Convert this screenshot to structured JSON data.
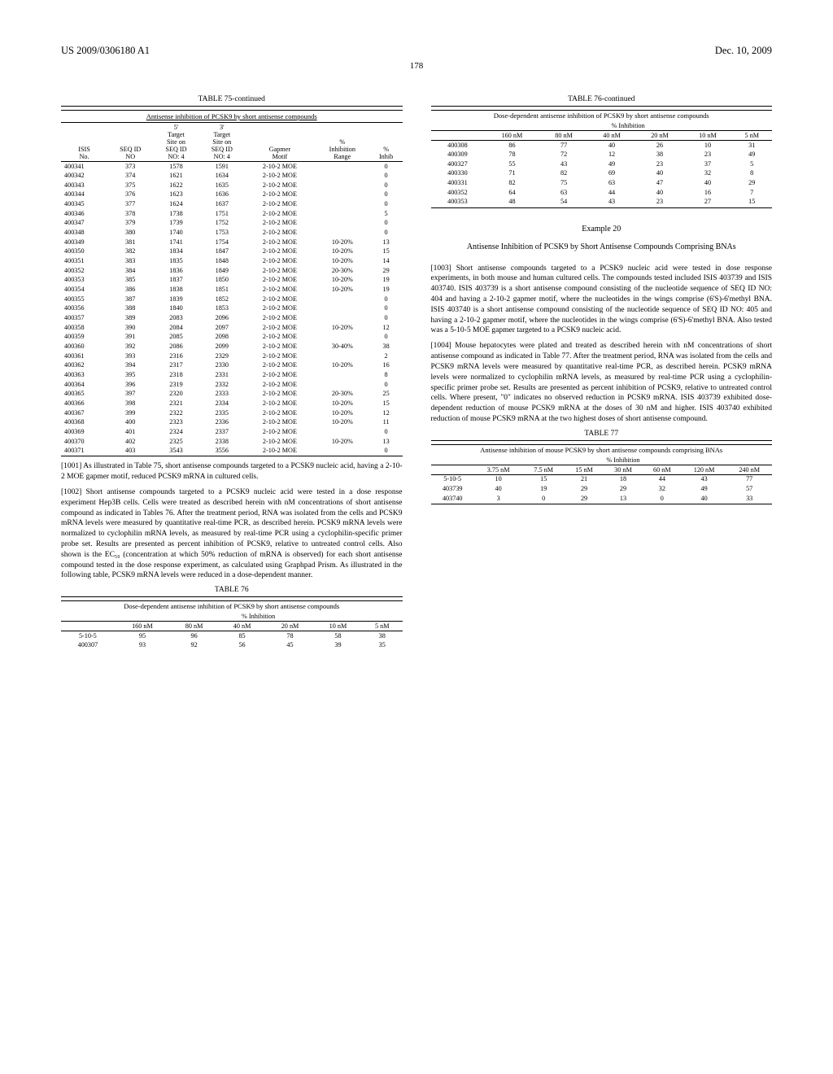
{
  "header": {
    "left": "US 2009/0306180 A1",
    "right": "Dec. 10, 2009"
  },
  "pageNumber": "178",
  "table75": {
    "title": "TABLE 75-continued",
    "caption": "Antisense inhibition of PCSK9 by short antisense compounds",
    "headers": [
      "ISIS No.",
      "SEQ ID NO",
      "5' Target Site on SEQ ID NO: 4",
      "3' Target Site on SEQ ID NO: 4",
      "Gapmer Motif",
      "% Inhibition Range",
      "% Inhib"
    ],
    "rows": [
      [
        "400341",
        "373",
        "1578",
        "1591",
        "2-10-2 MOE",
        "",
        "0"
      ],
      [
        "400342",
        "374",
        "1621",
        "1634",
        "2-10-2 MOE",
        "",
        "0"
      ],
      [
        "400343",
        "375",
        "1622",
        "1635",
        "2-10-2 MOE",
        "",
        "0"
      ],
      [
        "400344",
        "376",
        "1623",
        "1636",
        "2-10-2 MOE",
        "",
        "0"
      ],
      [
        "400345",
        "377",
        "1624",
        "1637",
        "2-10-2 MOE",
        "",
        "0"
      ],
      [
        "400346",
        "378",
        "1738",
        "1751",
        "2-10-2 MOE",
        "",
        "5"
      ],
      [
        "400347",
        "379",
        "1739",
        "1752",
        "2-10-2 MOE",
        "",
        "0"
      ],
      [
        "400348",
        "380",
        "1740",
        "1753",
        "2-10-2 MOE",
        "",
        "0"
      ],
      [
        "400349",
        "381",
        "1741",
        "1754",
        "2-10-2 MOE",
        "10-20%",
        "13"
      ],
      [
        "400350",
        "382",
        "1834",
        "1847",
        "2-10-2 MOE",
        "10-20%",
        "15"
      ],
      [
        "400351",
        "383",
        "1835",
        "1848",
        "2-10-2 MOE",
        "10-20%",
        "14"
      ],
      [
        "400352",
        "384",
        "1836",
        "1849",
        "2-10-2 MOE",
        "20-30%",
        "29"
      ],
      [
        "400353",
        "385",
        "1837",
        "1850",
        "2-10-2 MOE",
        "10-20%",
        "19"
      ],
      [
        "400354",
        "386",
        "1838",
        "1851",
        "2-10-2 MOE",
        "10-20%",
        "19"
      ],
      [
        "400355",
        "387",
        "1839",
        "1852",
        "2-10-2 MOE",
        "",
        "0"
      ],
      [
        "400356",
        "388",
        "1840",
        "1853",
        "2-10-2 MOE",
        "",
        "0"
      ],
      [
        "400357",
        "389",
        "2083",
        "2096",
        "2-10-2 MOE",
        "",
        "0"
      ],
      [
        "400358",
        "390",
        "2084",
        "2097",
        "2-10-2 MOE",
        "10-20%",
        "12"
      ],
      [
        "400359",
        "391",
        "2085",
        "2098",
        "2-10-2 MOE",
        "",
        "0"
      ],
      [
        "400360",
        "392",
        "2086",
        "2099",
        "2-10-2 MOE",
        "30-40%",
        "38"
      ],
      [
        "400361",
        "393",
        "2316",
        "2329",
        "2-10-2 MOE",
        "",
        "2"
      ],
      [
        "400362",
        "394",
        "2317",
        "2330",
        "2-10-2 MOE",
        "10-20%",
        "16"
      ],
      [
        "400363",
        "395",
        "2318",
        "2331",
        "2-10-2 MOE",
        "",
        "8"
      ],
      [
        "400364",
        "396",
        "2319",
        "2332",
        "2-10-2 MOE",
        "",
        "0"
      ],
      [
        "400365",
        "397",
        "2320",
        "2333",
        "2-10-2 MOE",
        "20-30%",
        "25"
      ],
      [
        "400366",
        "398",
        "2321",
        "2334",
        "2-10-2 MOE",
        "10-20%",
        "15"
      ],
      [
        "400367",
        "399",
        "2322",
        "2335",
        "2-10-2 MOE",
        "10-20%",
        "12"
      ],
      [
        "400368",
        "400",
        "2323",
        "2336",
        "2-10-2 MOE",
        "10-20%",
        "11"
      ],
      [
        "400369",
        "401",
        "2324",
        "2337",
        "2-10-2 MOE",
        "",
        "0"
      ],
      [
        "400370",
        "402",
        "2325",
        "2338",
        "2-10-2 MOE",
        "10-20%",
        "13"
      ],
      [
        "400371",
        "403",
        "3543",
        "3556",
        "2-10-2 MOE",
        "",
        "0"
      ]
    ]
  },
  "para1001": "[1001]  As illustrated in Table 75, short antisense compounds targeted to a PCSK9 nucleic acid, having a 2-10-2 MOE gapmer motif, reduced PCSK9 mRNA in cultured cells.",
  "para1002": "[1002]  Short antisense compounds targeted to a PCSK9 nucleic acid were tested in a dose response experiment Hep3B cells. Cells were treated as described herein with nM concentrations of short antisense compound as indicated in Tables 76. After the treatment period, RNA was isolated from the cells and PCSK9 mRNA levels were measured by quantitative real-time PCR, as described herein. PCSK9 mRNA levels were normalized to cyclophilin mRNA levels, as measured by real-time PCR using a cyclophilin-specific primer probe set. Results are presented as percent inhibition of PCSK9, relative to untreated control cells. Also shown is the EC₅₀ (concentration at which 50% reduction of mRNA is observed) for each short antisense compound tested in the dose response experiment, as calculated using Graphpad Prism. As illustrated in the following table, PCSK9 mRNA levels were reduced in a dose-dependent manner.",
  "table76left": {
    "title": "TABLE 76",
    "caption": "Dose-dependent antisense inhibition of PCSK9 by short antisense compounds",
    "subhead": "% Inhibition",
    "cols": [
      "",
      "160 nM",
      "80 nM",
      "40 nM",
      "20 nM",
      "10 nM",
      "5 nM"
    ],
    "rows": [
      [
        "5-10-5",
        "95",
        "96",
        "85",
        "78",
        "58",
        "38"
      ],
      [
        "400307",
        "93",
        "92",
        "56",
        "45",
        "39",
        "35"
      ]
    ]
  },
  "table76right": {
    "title": "TABLE 76-continued",
    "caption": "Dose-dependent antisense inhibition of PCSK9 by short antisense compounds",
    "subhead": "% Inhibition",
    "cols": [
      "",
      "160 nM",
      "80 nM",
      "40 nM",
      "20 nM",
      "10 nM",
      "5 nM"
    ],
    "rows": [
      [
        "400308",
        "86",
        "77",
        "40",
        "26",
        "10",
        "31"
      ],
      [
        "400309",
        "78",
        "72",
        "12",
        "38",
        "23",
        "49"
      ],
      [
        "400327",
        "55",
        "43",
        "49",
        "23",
        "37",
        "5"
      ],
      [
        "400330",
        "71",
        "82",
        "69",
        "40",
        "32",
        "8"
      ],
      [
        "400331",
        "82",
        "75",
        "63",
        "47",
        "40",
        "29"
      ],
      [
        "400352",
        "64",
        "63",
        "44",
        "40",
        "16",
        "7"
      ],
      [
        "400353",
        "48",
        "54",
        "43",
        "23",
        "27",
        "15"
      ]
    ]
  },
  "example20": {
    "label": "Example 20",
    "title": "Antisense Inhibition of PCSK9 by Short Antisense Compounds Comprising BNAs"
  },
  "para1003": "[1003]  Short antisense compounds targeted to a PCSK9 nucleic acid were tested in dose response experiments, in both mouse and human cultured cells. The compounds tested included ISIS 403739 and ISIS 403740. ISIS 403739 is a short antisense compound consisting of the nucleotide sequence of SEQ ID NO: 404 and having a 2-10-2 gapmer motif, where the nucleotides in the wings comprise (6'S)-6'methyl BNA. ISIS 403740 is a short antisense compound consisting of the nucleotide sequence of SEQ ID NO: 405 and having a 2-10-2 gapmer motif, where the nucleotides in the wings comprise (6'S)-6'methyl BNA. Also tested was a 5-10-5 MOE gapmer targeted to a PCSK9 nucleic acid.",
  "para1004": "[1004]  Mouse hepatocytes were plated and treated as described herein with nM concentrations of short antisense compound as indicated in Table 77. After the treatment period, RNA was isolated from the cells and PCSK9 mRNA levels were measured by quantitative real-time PCR, as described herein. PCSK9 mRNA levels were normalized to cyclophilin mRNA levels, as measured by real-time PCR using a cyclophilin-specific primer probe set. Results are presented as percent inhibition of PCSK9, relative to untreated control cells. Where present, \"0\" indicates no observed reduction in PCSK9 mRNA. ISIS 403739 exhibited dose-dependent reduction of mouse PCSK9 mRNA at the doses of 30 nM and higher. ISIS 403740 exhibited reduction of mouse PCSK9 mRNA at the two highest doses of short antisense compound.",
  "table77": {
    "title": "TABLE 77",
    "caption": "Antisense inhibition of mouse PCSK9 by short antisense compounds comprising BNAs",
    "subhead": "% Inhibition",
    "cols": [
      "",
      "3.75 nM",
      "7.5 nM",
      "15 nM",
      "30 nM",
      "60 nM",
      "120 nM",
      "240 nM"
    ],
    "rows": [
      [
        "5-10-5",
        "10",
        "15",
        "21",
        "18",
        "44",
        "43",
        "77"
      ],
      [
        "403739",
        "40",
        "19",
        "29",
        "29",
        "32",
        "49",
        "57"
      ],
      [
        "403740",
        "3",
        "0",
        "29",
        "13",
        "0",
        "40",
        "33"
      ]
    ]
  }
}
